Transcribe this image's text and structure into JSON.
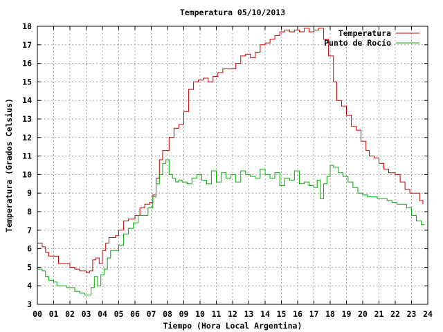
{
  "chart_data": {
    "type": "line",
    "title": "Temperatura 05/10/2013",
    "xlabel": "Tiempo (Hora Local Argentina)",
    "ylabel": "Temperatura (Grados Celsius)",
    "xlim": [
      0,
      24
    ],
    "ylim": [
      3,
      18
    ],
    "x_ticks": [
      "00",
      "01",
      "02",
      "03",
      "04",
      "05",
      "06",
      "07",
      "08",
      "09",
      "10",
      "11",
      "12",
      "13",
      "14",
      "15",
      "16",
      "17",
      "18",
      "19",
      "20",
      "21",
      "22",
      "23",
      "24"
    ],
    "y_ticks": [
      3,
      4,
      5,
      6,
      7,
      8,
      9,
      10,
      11,
      12,
      13,
      14,
      15,
      16,
      17,
      18
    ],
    "grid": true,
    "legend_position": "top-right",
    "series": [
      {
        "name": "Temperatura",
        "color": "#cc0000",
        "x": [
          0,
          0.3,
          0.5,
          0.7,
          1.0,
          1.3,
          1.7,
          2.0,
          2.3,
          2.6,
          3.0,
          3.2,
          3.4,
          3.6,
          3.8,
          4.0,
          4.2,
          4.4,
          4.6,
          4.8,
          5.0,
          5.3,
          5.6,
          6.0,
          6.3,
          6.6,
          6.9,
          7.1,
          7.3,
          7.5,
          7.7,
          7.9,
          8.1,
          8.4,
          8.7,
          9.0,
          9.3,
          9.6,
          9.9,
          10.2,
          10.5,
          10.8,
          11.1,
          11.4,
          11.8,
          12.2,
          12.5,
          12.8,
          13.1,
          13.4,
          13.7,
          14.0,
          14.3,
          14.6,
          14.9,
          15.2,
          15.5,
          15.8,
          16.1,
          16.4,
          16.7,
          17.0,
          17.3,
          17.6,
          17.9,
          18.2,
          18.4,
          18.7,
          19.0,
          19.3,
          19.6,
          19.9,
          20.2,
          20.4,
          20.7,
          21.0,
          21.3,
          21.6,
          22.0,
          22.3,
          22.6,
          22.9,
          23.2,
          23.5,
          23.7
        ],
        "values": [
          6.3,
          6.1,
          5.8,
          5.6,
          5.6,
          5.2,
          5.2,
          5.0,
          4.9,
          4.8,
          4.7,
          4.8,
          5.4,
          5.5,
          5.2,
          5.9,
          6.3,
          6.6,
          6.6,
          6.7,
          7.0,
          7.5,
          7.6,
          7.8,
          8.2,
          8.4,
          8.5,
          8.9,
          9.8,
          10.8,
          11.3,
          11.3,
          12.0,
          12.5,
          12.7,
          13.4,
          14.6,
          15.0,
          15.1,
          15.2,
          15.0,
          15.3,
          15.5,
          15.7,
          15.7,
          16.0,
          16.4,
          16.5,
          16.3,
          16.6,
          17.0,
          17.1,
          17.3,
          17.5,
          17.7,
          17.8,
          17.7,
          17.8,
          17.7,
          17.9,
          17.7,
          17.8,
          17.9,
          17.3,
          16.4,
          15.0,
          14.0,
          13.7,
          13.2,
          12.6,
          12.4,
          11.8,
          11.3,
          11.0,
          10.9,
          10.6,
          10.3,
          10.1,
          10.0,
          9.6,
          9.2,
          9.0,
          9.0,
          8.6,
          8.4
        ]
      },
      {
        "name": "Punto de Rocío",
        "color": "#00aa00",
        "x": [
          0,
          0.3,
          0.5,
          0.7,
          1.0,
          1.2,
          1.5,
          1.8,
          2.0,
          2.3,
          2.6,
          2.9,
          3.1,
          3.3,
          3.5,
          3.7,
          3.9,
          4.1,
          4.3,
          4.5,
          4.7,
          5.0,
          5.3,
          5.6,
          5.9,
          6.2,
          6.5,
          6.8,
          7.1,
          7.3,
          7.5,
          7.7,
          7.9,
          8.1,
          8.3,
          8.5,
          8.7,
          8.9,
          9.2,
          9.5,
          9.8,
          10.1,
          10.4,
          10.7,
          11.0,
          11.3,
          11.6,
          11.9,
          12.2,
          12.5,
          12.8,
          13.1,
          13.4,
          13.7,
          14.0,
          14.3,
          14.6,
          14.9,
          15.2,
          15.5,
          15.8,
          16.1,
          16.4,
          16.7,
          17.0,
          17.2,
          17.4,
          17.6,
          17.8,
          18.0,
          18.2,
          18.5,
          18.8,
          19.1,
          19.4,
          19.7,
          20.0,
          20.3,
          20.6,
          20.9,
          21.2,
          21.5,
          21.8,
          22.1,
          22.4,
          22.7,
          23.0,
          23.3,
          23.6,
          23.8
        ],
        "values": [
          4.9,
          4.8,
          4.5,
          4.3,
          4.2,
          4.0,
          4.0,
          3.9,
          3.9,
          3.7,
          3.6,
          3.5,
          3.5,
          3.9,
          4.5,
          4.0,
          4.6,
          4.9,
          5.5,
          5.9,
          5.9,
          6.2,
          6.8,
          7.1,
          7.4,
          7.8,
          7.8,
          8.2,
          8.8,
          9.5,
          10.0,
          10.6,
          10.8,
          10.0,
          9.8,
          9.6,
          9.7,
          9.6,
          9.5,
          9.8,
          10.0,
          9.7,
          9.5,
          10.2,
          9.6,
          10.1,
          9.8,
          10.0,
          9.6,
          10.2,
          10.0,
          9.9,
          9.8,
          10.3,
          10.0,
          9.8,
          10.1,
          9.4,
          9.8,
          9.7,
          10.2,
          9.5,
          9.6,
          9.4,
          9.3,
          9.7,
          8.7,
          9.5,
          9.9,
          10.5,
          10.4,
          10.1,
          9.9,
          9.6,
          9.3,
          9.0,
          8.9,
          8.8,
          8.8,
          8.7,
          8.7,
          8.6,
          8.5,
          8.4,
          8.4,
          8.2,
          7.8,
          7.5,
          7.3,
          7.3
        ]
      }
    ]
  }
}
